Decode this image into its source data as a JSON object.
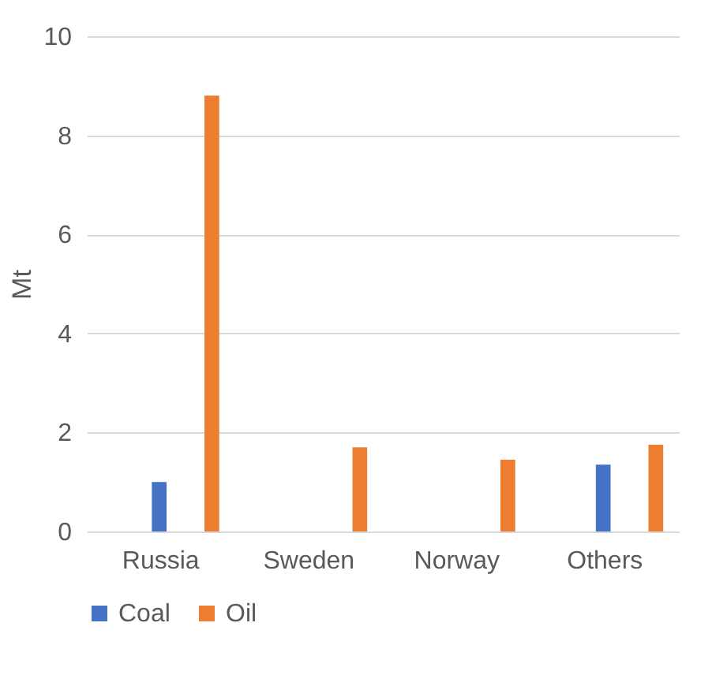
{
  "chart_data": {
    "type": "bar",
    "ylabel": "Mt",
    "categories": [
      "Russia",
      "Sweden",
      "Norway",
      "Others"
    ],
    "series": [
      {
        "name": "Coal",
        "color": "#4472c4",
        "values": [
          1.0,
          null,
          null,
          1.35
        ]
      },
      {
        "name": "Oil",
        "color": "#ed7d31",
        "values": [
          8.8,
          1.7,
          1.45,
          1.75
        ]
      }
    ],
    "ylim": [
      0,
      10
    ],
    "yticks": [
      0,
      2,
      4,
      6,
      8,
      10
    ],
    "grid": "y",
    "legend": "bottom"
  }
}
